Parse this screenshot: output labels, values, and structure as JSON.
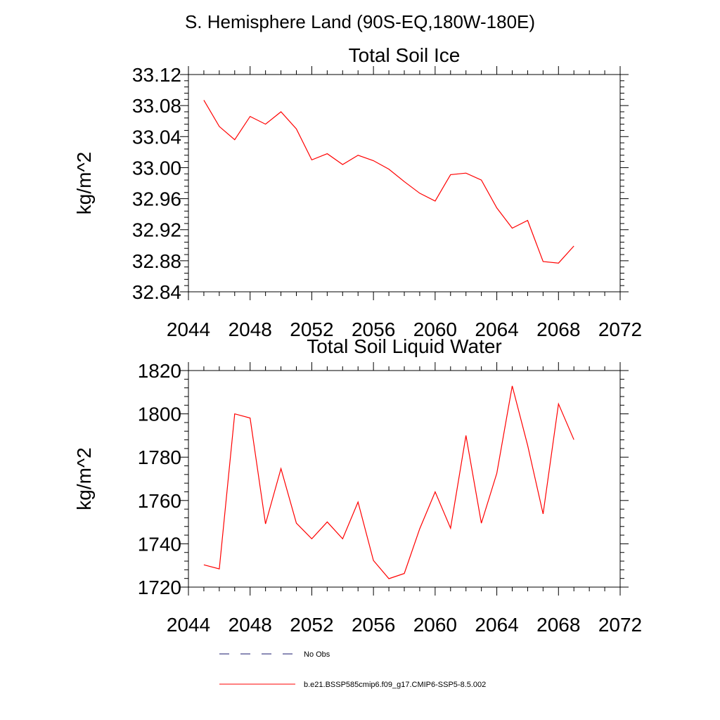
{
  "header": {
    "title": "S. Hemisphere Land (90S-EQ,180W-180E)"
  },
  "legend": {
    "items": [
      {
        "label": "No Obs",
        "color": "#1a1a6e",
        "style": "dashed"
      },
      {
        "label": "b.e21.BSSP585cmip6.f09_g17.CMIP6-SSP5-8.5.002",
        "color": "#ff0000",
        "style": "solid"
      }
    ]
  },
  "chart_data": [
    {
      "type": "line",
      "title": "Total Soil Ice",
      "xlabel": "",
      "ylabel": "kg/m^2",
      "xlim": [
        2044,
        2072
      ],
      "ylim": [
        32.84,
        33.12
      ],
      "xticks": [
        2044,
        2048,
        2052,
        2056,
        2060,
        2064,
        2068,
        2072
      ],
      "xtick_labels": [
        "2044",
        "2048",
        "2052",
        "2056",
        "2060",
        "2064",
        "2068",
        "2072"
      ],
      "yticks": [
        32.84,
        32.88,
        32.92,
        32.96,
        33.0,
        33.04,
        33.08,
        33.12
      ],
      "ytick_labels": [
        "32.84",
        "32.88",
        "32.92",
        "32.96",
        "33.00",
        "33.04",
        "33.08",
        "33.12"
      ],
      "grid": false,
      "series": [
        {
          "name": "b.e21.BSSP585cmip6.f09_g17.CMIP6-SSP5-8.5.002",
          "color": "#ff0000",
          "x": [
            2045,
            2046,
            2047,
            2048,
            2049,
            2050,
            2051,
            2052,
            2053,
            2054,
            2055,
            2056,
            2057,
            2058,
            2059,
            2060,
            2061,
            2062,
            2063,
            2064,
            2065,
            2066,
            2067,
            2068,
            2069
          ],
          "y": [
            33.087,
            33.053,
            33.036,
            33.066,
            33.056,
            33.072,
            33.05,
            33.01,
            33.018,
            33.004,
            33.016,
            33.009,
            32.998,
            32.982,
            32.967,
            32.957,
            32.991,
            32.993,
            32.984,
            32.948,
            32.922,
            32.932,
            32.879,
            32.877,
            32.899
          ]
        }
      ]
    },
    {
      "type": "line",
      "title": "Total Soil Liquid Water",
      "xlabel": "",
      "ylabel": "kg/m^2",
      "xlim": [
        2044,
        2072
      ],
      "ylim": [
        1720,
        1820
      ],
      "xticks": [
        2044,
        2048,
        2052,
        2056,
        2060,
        2064,
        2068,
        2072
      ],
      "xtick_labels": [
        "2044",
        "2048",
        "2052",
        "2056",
        "2060",
        "2064",
        "2068",
        "2072"
      ],
      "yticks": [
        1720,
        1740,
        1760,
        1780,
        1800,
        1820
      ],
      "ytick_labels": [
        "1720",
        "1740",
        "1760",
        "1780",
        "1800",
        "1820"
      ],
      "grid": false,
      "series": [
        {
          "name": "b.e21.BSSP585cmip6.f09_g17.CMIP6-SSP5-8.5.002",
          "color": "#ff0000",
          "x": [
            2045,
            2046,
            2047,
            2048,
            2049,
            2050,
            2051,
            2052,
            2053,
            2054,
            2055,
            2056,
            2057,
            2058,
            2059,
            2060,
            2061,
            2062,
            2063,
            2064,
            2065,
            2066,
            2067,
            2068,
            2069
          ],
          "y": [
            1730.3,
            1728.4,
            1800.0,
            1798.1,
            1749.2,
            1774.7,
            1749.5,
            1742.3,
            1750.1,
            1742.3,
            1759.3,
            1732.3,
            1723.9,
            1726.3,
            1746.9,
            1764.0,
            1747.2,
            1790.0,
            1749.5,
            1772.6,
            1812.9,
            1785.5,
            1753.8,
            1804.6,
            1788.1
          ]
        }
      ]
    }
  ]
}
